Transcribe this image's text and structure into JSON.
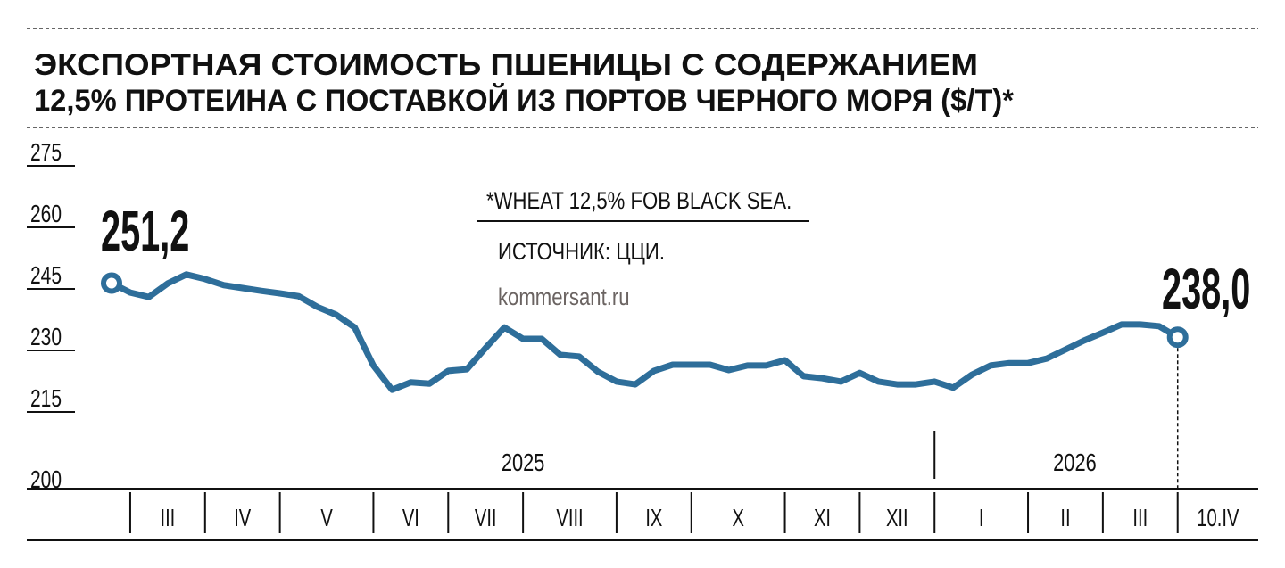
{
  "chart_data": {
    "type": "line",
    "title_lines": [
      "ЭКСПОРТНАЯ СТОИМОСТЬ ПШЕНИЦЫ С СОДЕРЖАНИЕМ",
      "12,5% ПРОТЕИНА С ПОСТАВКОЙ ИЗ ПОРТОВ ЧЕРНОГО МОРЯ ($/Т)*"
    ],
    "ylabel": "$/т",
    "ylim": [
      200,
      275
    ],
    "yticks": [
      "275",
      "260",
      "245",
      "230",
      "215",
      "200"
    ],
    "ytick_values": [
      275,
      260,
      245,
      230,
      215,
      200
    ],
    "x_unit": "week index",
    "xlim": [
      0,
      62
    ],
    "values": [
      251.2,
      248.9,
      247.8,
      251.1,
      253.3,
      252.2,
      250.7,
      250.0,
      249.3,
      248.7,
      248.0,
      245.4,
      243.5,
      240.4,
      231.1,
      225.2,
      227.0,
      226.7,
      229.8,
      230.2,
      235.4,
      240.4,
      237.6,
      237.6,
      233.7,
      233.3,
      229.6,
      227.2,
      226.5,
      229.8,
      231.3,
      231.3,
      231.3,
      230.0,
      231.1,
      231.1,
      232.4,
      228.5,
      228.0,
      227.2,
      229.3,
      227.2,
      226.5,
      226.5,
      227.2,
      225.7,
      228.9,
      231.1,
      231.7,
      231.7,
      232.8,
      235.0,
      237.2,
      239.1,
      241.1,
      241.1,
      240.7,
      238.0
    ],
    "start_label": "251,2",
    "end_label": "238,0",
    "months": [
      {
        "label": "III",
        "from": 1,
        "to": 5
      },
      {
        "label": "IV",
        "from": 5,
        "to": 9
      },
      {
        "label": "V",
        "from": 9,
        "to": 14
      },
      {
        "label": "VI",
        "from": 14,
        "to": 18
      },
      {
        "label": "VII",
        "from": 18,
        "to": 22
      },
      {
        "label": "VIII",
        "from": 22,
        "to": 27
      },
      {
        "label": "IX",
        "from": 27,
        "to": 31
      },
      {
        "label": "X",
        "from": 31,
        "to": 36
      },
      {
        "label": "XI",
        "from": 36,
        "to": 40
      },
      {
        "label": "XII",
        "from": 40,
        "to": 44
      },
      {
        "label": "I",
        "from": 44,
        "to": 49
      },
      {
        "label": "II",
        "from": 49,
        "to": 53
      },
      {
        "label": "III",
        "from": 53,
        "to": 57
      },
      {
        "label": "10.IV",
        "from": 57,
        "to": 62
      }
    ],
    "years": [
      {
        "label": "2025",
        "center": 22
      },
      {
        "label": "2026",
        "center": 51.5
      }
    ],
    "year_divider": 44,
    "grid": false,
    "line_color": "#2e6e9a"
  },
  "notes": {
    "footnote": "*WHEAT 12,5% FOB BLACK SEA.",
    "source": "ИСТОЧНИК: ЦЦИ.",
    "site": "kommersant.ru"
  }
}
